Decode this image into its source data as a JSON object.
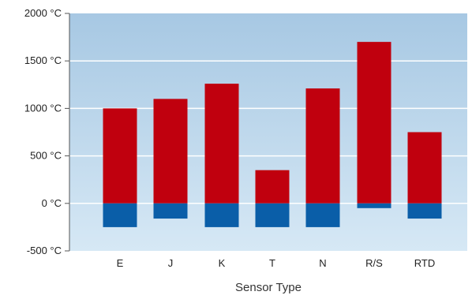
{
  "chart_data": {
    "type": "bar",
    "xlabel": "Sensor Type",
    "ylabel": "",
    "ylim": [
      -500,
      2000
    ],
    "yticks": [
      2000,
      1500,
      1000,
      500,
      0,
      -500
    ],
    "ytick_labels": [
      "2000 °C",
      "1500 °C",
      "1000 °C",
      "500 °C",
      "0 °C",
      "-500 °C"
    ],
    "categories": [
      "E",
      "J",
      "K",
      "T",
      "N",
      "R/S",
      "RTD"
    ],
    "series": [
      {
        "values": [
          1000,
          1100,
          1260,
          350,
          1210,
          1700,
          750
        ]
      },
      {
        "values": [
          -250,
          -160,
          -250,
          -250,
          -250,
          -50,
          -160
        ]
      }
    ],
    "grid": true,
    "colors": {
      "upper": "#c0000e",
      "lower": "#0a5ea8",
      "plot_background_top": "#a7c8e3",
      "plot_background_bottom": "#d6e8f5",
      "grid": "#ffffff"
    }
  }
}
